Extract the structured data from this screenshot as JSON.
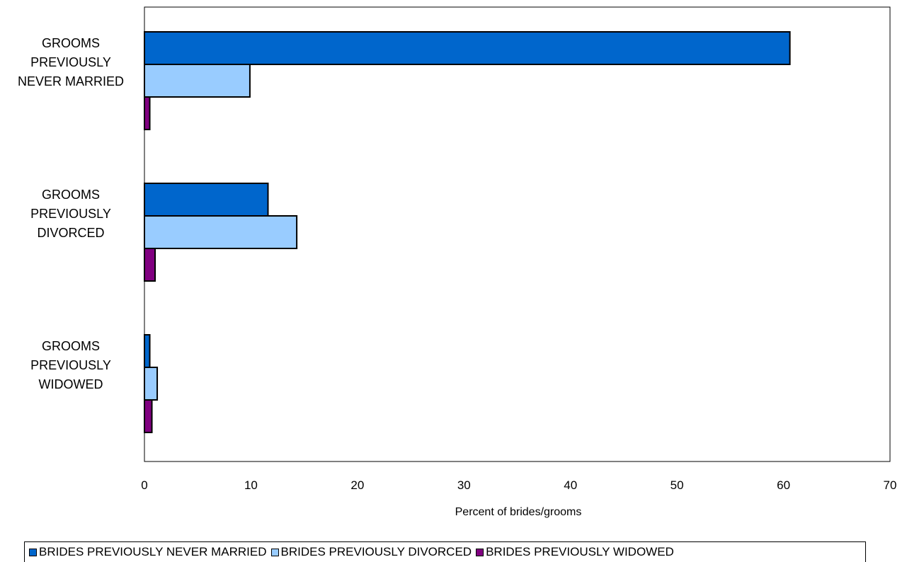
{
  "chart_data": {
    "type": "bar",
    "orientation": "horizontal",
    "categories": [
      [
        "GROOMS",
        "PREVIOUSLY",
        "NEVER MARRIED"
      ],
      [
        "GROOMS",
        "PREVIOUSLY",
        "DIVORCED"
      ],
      [
        "GROOMS",
        "PREVIOUSLY",
        "WIDOWED"
      ]
    ],
    "series": [
      {
        "name": "BRIDES PREVIOUSLY NEVER MARRIED",
        "color": "#0066CC",
        "values": [
          60.6,
          11.6,
          0.5
        ]
      },
      {
        "name": "BRIDES PREVIOUSLY DIVORCED",
        "color": "#99CCFF",
        "values": [
          9.9,
          14.3,
          1.2
        ]
      },
      {
        "name": "BRIDES PREVIOUSLY WIDOWED",
        "color": "#800080",
        "values": [
          0.5,
          1.0,
          0.7
        ]
      }
    ],
    "xlabel": "Percent of brides/grooms",
    "ylabel": "",
    "xlim": [
      0,
      70
    ],
    "xticks": [
      0,
      10,
      20,
      30,
      40,
      50,
      60,
      70
    ],
    "grid": false,
    "legend_position": "bottom"
  }
}
